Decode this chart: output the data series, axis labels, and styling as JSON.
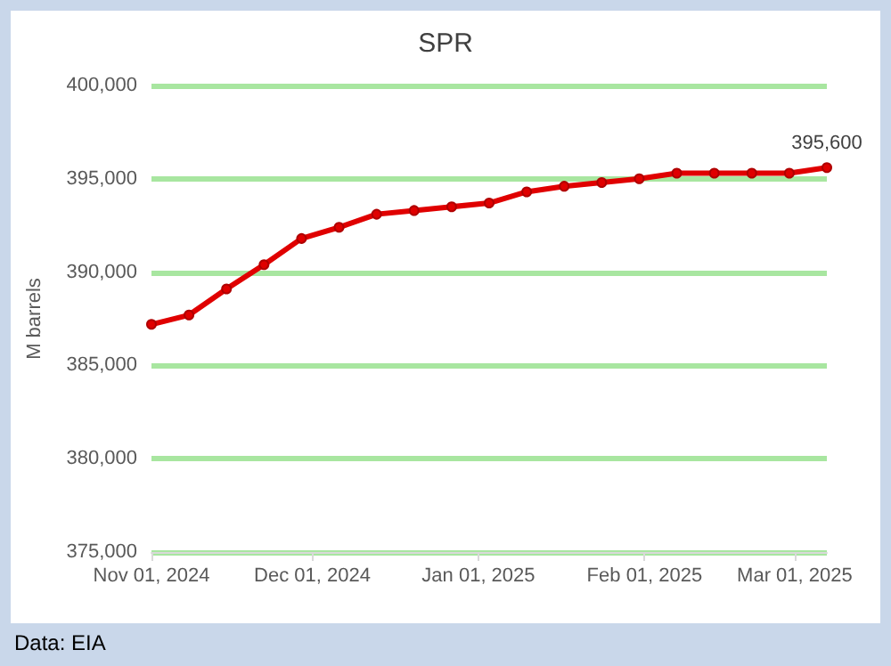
{
  "chart_data": {
    "type": "line",
    "title": "SPR",
    "ylabel": "M barrels",
    "annotations": [
      "Data: EIA"
    ],
    "x": [
      "2024-11-01",
      "2024-11-08",
      "2024-11-15",
      "2024-11-22",
      "2024-11-29",
      "2024-12-06",
      "2024-12-13",
      "2024-12-20",
      "2024-12-27",
      "2025-01-03",
      "2025-01-10",
      "2025-01-17",
      "2025-01-24",
      "2025-01-31",
      "2025-02-07",
      "2025-02-14",
      "2025-02-21",
      "2025-02-28",
      "2025-03-07"
    ],
    "series": [
      {
        "color": "#e00000",
        "values": [
          387200,
          387700,
          389100,
          390400,
          391800,
          392400,
          393100,
          393300,
          393500,
          393700,
          394300,
          394600,
          394800,
          395000,
          395300,
          395300,
          395300,
          395300,
          395600
        ],
        "value_labels": [
          null,
          null,
          null,
          null,
          null,
          null,
          null,
          null,
          null,
          null,
          null,
          null,
          null,
          null,
          null,
          null,
          null,
          null,
          "395,600"
        ]
      }
    ],
    "xlim": [
      "2024-11-01",
      "2025-03-07"
    ],
    "xticks": [
      {
        "value": "2024-11-01",
        "label": "Nov 01, 2024"
      },
      {
        "value": "2024-12-01",
        "label": "Dec 01, 2024"
      },
      {
        "value": "2025-01-01",
        "label": "Jan 01, 2025"
      },
      {
        "value": "2025-02-01",
        "label": "Feb 01, 2025"
      },
      {
        "value": "2025-03-01",
        "label": "Mar 01, 2025"
      }
    ],
    "ylim": [
      375000,
      400000
    ],
    "yticks": [
      {
        "value": 375000,
        "label": "375,000"
      },
      {
        "value": 380000,
        "label": "380,000"
      },
      {
        "value": 385000,
        "label": "385,000"
      },
      {
        "value": 390000,
        "label": "390,000"
      },
      {
        "value": 395000,
        "label": "395,000"
      },
      {
        "value": 400000,
        "label": "400,000"
      }
    ],
    "grid": "y",
    "marker": "circle",
    "line_style": "solid"
  }
}
